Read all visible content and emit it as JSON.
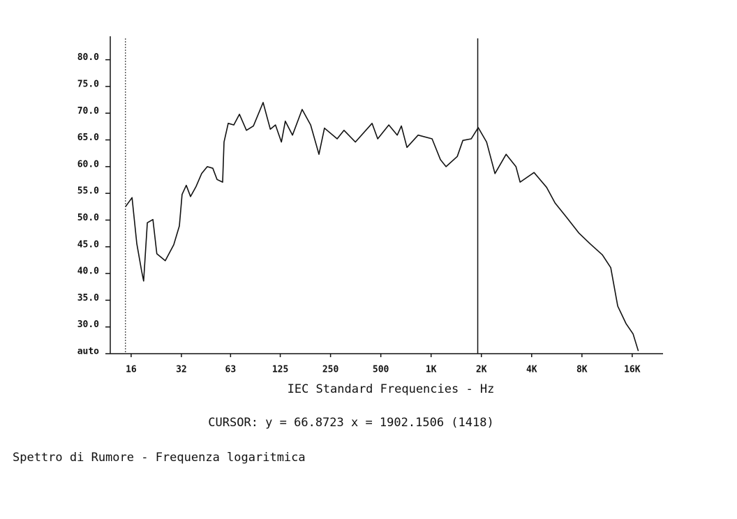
{
  "chart_data": {
    "type": "line",
    "x_label": "IEC Standard Frequencies - Hz",
    "cursor": {
      "x": 1902.1506,
      "y": 66.8723,
      "label": "CURSOR: y = 66.8723 x = 1902.1506 (1418)"
    },
    "caption": "Spettro di Rumore - Frequenza logaritmica",
    "log_x": true,
    "xlim": [
      12,
      24000
    ],
    "ylim": [
      25,
      84
    ],
    "xticks": [
      16,
      32,
      63,
      125,
      250,
      500,
      {
        "value": 1000,
        "label": "1K"
      },
      {
        "value": 2000,
        "label": "2K"
      },
      {
        "value": 4000,
        "label": "4K"
      },
      {
        "value": 8000,
        "label": "8K"
      },
      {
        "value": 16000,
        "label": "16K"
      }
    ],
    "yticks": [
      {
        "value": 25,
        "label": "auto"
      },
      {
        "value": 30,
        "label": "30.0"
      },
      {
        "value": 35,
        "label": "35.0"
      },
      {
        "value": 40,
        "label": "40.0"
      },
      {
        "value": 45,
        "label": "45.0"
      },
      {
        "value": 50,
        "label": "50.0"
      },
      {
        "value": 55,
        "label": "55.0"
      },
      {
        "value": 60,
        "label": "60.0"
      },
      {
        "value": 65,
        "label": "65.0"
      },
      {
        "value": 70,
        "label": "70.0"
      },
      {
        "value": 75,
        "label": "75.0"
      },
      {
        "value": 80,
        "label": "80.0"
      }
    ],
    "dashed_vlines": [
      14.8
    ],
    "x": [
      14.8,
      16.2,
      17.3,
      18.5,
      19.0,
      20.0,
      21.6,
      22.8,
      25.6,
      28.8,
      31.1,
      32.3,
      34.2,
      36.3,
      39.2,
      42.3,
      45.7,
      49.3,
      52.3,
      56.5,
      57.6,
      61.0,
      65.9,
      71.2,
      78.4,
      86.3,
      98.7,
      109,
      117,
      127,
      134,
      148,
      169,
      190,
      213,
      230,
      274,
      301,
      352,
      443,
      479,
      558,
      627,
      664,
      717,
      836,
      1014,
      1138,
      1229,
      1434,
      1549,
      1739,
      1915,
      2149,
      2412,
      2813,
      3221,
      3411,
      4136,
      4920,
      5523,
      6440,
      7660,
      8930,
      10600,
      11900,
      13100,
      14700,
      16200,
      17400
    ],
    "series": [
      {
        "color": "#111111",
        "values": [
          52.5,
          54.2,
          45.6,
          40.4,
          38.6,
          49.5,
          50.1,
          43.7,
          42.4,
          45.4,
          48.9,
          54.8,
          56.5,
          54.4,
          56.3,
          58.7,
          60.0,
          59.7,
          57.6,
          57.1,
          64.6,
          68.1,
          67.8,
          69.8,
          66.8,
          67.6,
          72.0,
          67.0,
          67.8,
          64.6,
          68.5,
          65.9,
          70.7,
          67.8,
          62.3,
          67.2,
          65.2,
          66.8,
          64.6,
          68.1,
          65.2,
          67.8,
          65.9,
          67.6,
          63.6,
          65.9,
          65.2,
          61.3,
          60.0,
          61.9,
          64.9,
          65.2,
          67.3,
          64.6,
          58.7,
          62.3,
          60.0,
          57.1,
          58.9,
          56.1,
          53.2,
          50.6,
          47.6,
          45.6,
          43.5,
          41.1,
          33.9,
          30.6,
          28.7,
          25.5
        ]
      }
    ]
  }
}
